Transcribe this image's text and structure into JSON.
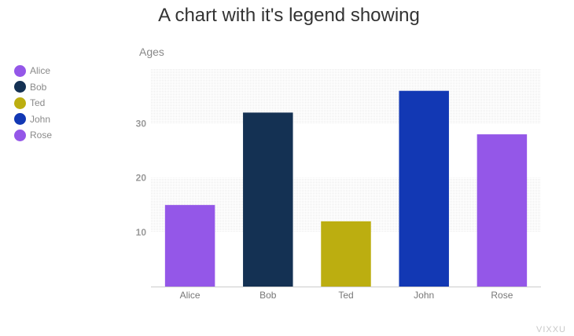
{
  "chart_data": {
    "type": "bar",
    "title": "A chart with it's legend showing",
    "ylabel": "Ages",
    "xlabel": "",
    "categories": [
      "Alice",
      "Bob",
      "Ted",
      "John",
      "Rose"
    ],
    "values": [
      15,
      32,
      12,
      36,
      28
    ],
    "colors": [
      "#9457e8",
      "#143153",
      "#bcae10",
      "#1238b4",
      "#9457e8"
    ],
    "ylim": [
      0,
      40
    ],
    "yticks": [
      10,
      20,
      30
    ],
    "legend_position": "left",
    "grid": "alternating bands"
  },
  "watermark": "VIXXU"
}
